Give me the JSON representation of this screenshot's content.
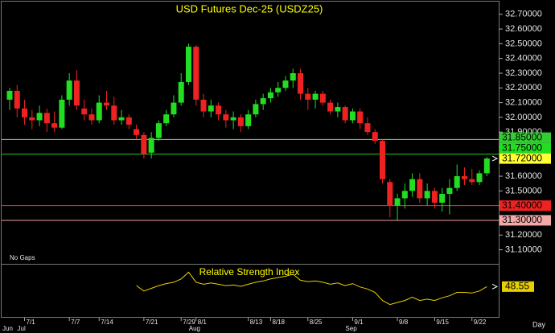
{
  "chart_data": [
    {
      "type": "candlestick",
      "title": "USD Futures Dec-25 (USDZ25)",
      "annotation": "No Gaps",
      "categories": [
        null,
        null,
        "7/1",
        null,
        null,
        null,
        null,
        null,
        "7/7",
        null,
        null,
        null,
        "7/14",
        null,
        null,
        null,
        null,
        null,
        "7/21",
        null,
        null,
        null,
        null,
        "7/29",
        null,
        "8/1",
        null,
        null,
        null,
        null,
        null,
        null,
        "8/13",
        null,
        null,
        "8/18",
        null,
        null,
        null,
        null,
        "8/25",
        null,
        null,
        null,
        null,
        null,
        "9/1",
        null,
        null,
        null,
        null,
        null,
        "9/8",
        null,
        null,
        null,
        null,
        "9/15",
        null,
        null,
        null,
        null,
        "9/22",
        null,
        null
      ],
      "month_labels": [
        "Jun",
        null,
        "Jul",
        null,
        null,
        null,
        null,
        null,
        null,
        null,
        null,
        null,
        null,
        null,
        null,
        null,
        null,
        null,
        null,
        null,
        null,
        null,
        null,
        null,
        null,
        "Aug",
        null,
        null,
        null,
        null,
        null,
        null,
        null,
        null,
        null,
        null,
        null,
        null,
        null,
        null,
        null,
        null,
        null,
        null,
        null,
        null,
        "Sep",
        null,
        null,
        null,
        null,
        null,
        null,
        null,
        null,
        null,
        null,
        null,
        null,
        null,
        null,
        null,
        null,
        null,
        null
      ],
      "open": [
        32.12,
        32.18,
        32.06,
        32.0,
        31.98,
        32.03,
        31.96,
        31.93,
        32.12,
        32.25,
        32.06,
        32.02,
        31.98,
        32.1,
        32.08,
        31.98,
        32.0,
        31.92,
        31.88,
        31.76,
        31.86,
        31.96,
        32.02,
        32.1,
        32.24,
        32.48,
        32.12,
        32.04,
        32.08,
        32.02,
        31.98,
        32.0,
        31.94,
        32.02,
        32.09,
        32.13,
        32.17,
        32.2,
        32.25,
        32.3,
        32.16,
        32.12,
        32.16,
        32.1,
        32.04,
        32.07,
        31.98,
        32.04,
        31.96,
        31.9,
        31.84,
        31.56,
        31.4,
        31.45,
        31.5,
        31.58,
        31.45,
        31.5,
        31.42,
        31.48,
        31.52,
        31.6,
        31.58,
        31.56,
        31.62
      ],
      "high": [
        32.2,
        32.22,
        32.12,
        32.05,
        32.08,
        32.06,
        32.04,
        32.15,
        32.3,
        32.32,
        32.12,
        32.06,
        32.15,
        32.18,
        32.14,
        32.05,
        32.02,
        31.95,
        31.9,
        31.9,
        31.98,
        32.05,
        32.15,
        32.3,
        32.5,
        32.49,
        32.16,
        32.12,
        32.1,
        32.05,
        32.04,
        32.02,
        32.05,
        32.12,
        32.16,
        32.2,
        32.24,
        32.28,
        32.33,
        32.33,
        32.2,
        32.18,
        32.18,
        32.12,
        32.1,
        32.08,
        32.06,
        32.06,
        32.0,
        31.92,
        31.85,
        31.58,
        31.48,
        31.55,
        31.62,
        31.62,
        31.55,
        31.52,
        31.52,
        31.58,
        31.68,
        31.66,
        31.65,
        31.64,
        31.73
      ],
      "low": [
        32.05,
        32.0,
        31.95,
        31.92,
        31.94,
        31.9,
        31.9,
        31.92,
        32.08,
        32.05,
        31.98,
        31.95,
        31.96,
        32.05,
        31.95,
        31.95,
        31.92,
        31.85,
        31.72,
        31.72,
        31.84,
        31.94,
        32.0,
        32.08,
        32.22,
        32.08,
        32.0,
        32.0,
        31.98,
        31.93,
        31.92,
        31.9,
        31.92,
        32.0,
        32.05,
        32.1,
        32.14,
        32.18,
        32.2,
        32.12,
        32.05,
        32.06,
        32.08,
        32.02,
        32.0,
        31.96,
        31.96,
        31.92,
        31.88,
        31.82,
        31.55,
        31.32,
        31.3,
        31.38,
        31.46,
        31.42,
        31.4,
        31.38,
        31.36,
        31.34,
        31.5,
        31.54,
        31.54,
        31.54,
        31.6
      ],
      "close": [
        32.18,
        32.06,
        32.0,
        31.98,
        32.03,
        31.96,
        31.93,
        32.12,
        32.25,
        32.08,
        32.02,
        31.98,
        32.1,
        32.08,
        31.98,
        32.0,
        31.95,
        31.88,
        31.75,
        31.86,
        31.96,
        32.02,
        32.1,
        32.24,
        32.48,
        32.12,
        32.04,
        32.08,
        32.02,
        31.98,
        32.0,
        31.94,
        32.02,
        32.09,
        32.13,
        32.17,
        32.2,
        32.25,
        32.3,
        32.16,
        32.12,
        32.16,
        32.1,
        32.04,
        32.07,
        31.98,
        32.04,
        31.96,
        31.9,
        31.84,
        31.58,
        31.4,
        31.45,
        31.5,
        31.58,
        31.45,
        31.5,
        31.42,
        31.48,
        31.52,
        31.6,
        31.58,
        31.56,
        31.62,
        31.72
      ],
      "up_color": "#22dd22",
      "down_color": "#ee2222",
      "ylim": [
        31.01,
        32.77
      ],
      "yticks": [
        {
          "value": 31.1,
          "label": "31.10000"
        },
        {
          "value": 31.2,
          "label": "31.20000"
        },
        {
          "value": 31.3,
          "label": "31.30000"
        },
        {
          "value": 31.4,
          "label": "31.40000"
        },
        {
          "value": 31.5,
          "label": "31.50000"
        },
        {
          "value": 31.6,
          "label": "31.60000"
        },
        {
          "value": 31.7,
          "label": "31.70000"
        },
        {
          "value": 31.8,
          "label": "31.80000"
        },
        {
          "value": 31.9,
          "label": "31.90000"
        },
        {
          "value": 32.0,
          "label": "32.00000"
        },
        {
          "value": 32.1,
          "label": "32.10000"
        },
        {
          "value": 32.2,
          "label": "32.20000"
        },
        {
          "value": 32.3,
          "label": "32.30000"
        },
        {
          "value": 32.4,
          "label": "32.40000"
        },
        {
          "value": 32.5,
          "label": "32.50000"
        },
        {
          "value": 32.6,
          "label": "32.60000"
        },
        {
          "value": 32.7,
          "label": "32.70000"
        }
      ],
      "levels": [
        {
          "value": 31.85,
          "label": "31.85000",
          "color": "#7fd67f",
          "label_color": "#33cc33"
        },
        {
          "value": 31.75,
          "label": "31.75000",
          "color": "#22cc22",
          "label_color": "#22dd22"
        },
        {
          "value": 31.4,
          "label": "31.40000",
          "color": "#ee3333",
          "label_color": "#ee2222"
        },
        {
          "value": 31.3,
          "label": "31.30000",
          "color": "#f0a0a0",
          "label_color": "#f4a8a8"
        }
      ],
      "last_price": {
        "value": 31.72,
        "label": "31.72000",
        "color": "#ffff33"
      },
      "grid": false
    },
    {
      "type": "line",
      "title": "Relative Strength Index",
      "color": "#e8d000",
      "ylim": [
        0,
        80
      ],
      "values": [
        null,
        null,
        null,
        null,
        null,
        null,
        null,
        null,
        null,
        null,
        null,
        null,
        null,
        null,
        null,
        null,
        null,
        50,
        42,
        46,
        50,
        53,
        55,
        60,
        70,
        55,
        52,
        54,
        52,
        50,
        51,
        49,
        52,
        55,
        57,
        60,
        62,
        64,
        67,
        58,
        56,
        57,
        55,
        52,
        54,
        50,
        53,
        48,
        45,
        40,
        28,
        22,
        25,
        28,
        33,
        28,
        30,
        28,
        32,
        35,
        40,
        40,
        39,
        42,
        48.55
      ]
    }
  ],
  "periodicity": "Day"
}
